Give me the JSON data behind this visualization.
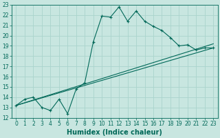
{
  "xlabel": "Humidex (Indice chaleur)",
  "bg_color": "#c8e6e0",
  "line_color": "#006858",
  "grid_color": "#aad4cc",
  "xlim": [
    -0.5,
    23.5
  ],
  "ylim": [
    12,
    23
  ],
  "xticks": [
    0,
    1,
    2,
    3,
    4,
    5,
    6,
    7,
    8,
    9,
    10,
    11,
    12,
    13,
    14,
    15,
    16,
    17,
    18,
    19,
    20,
    21,
    22,
    23
  ],
  "yticks": [
    12,
    13,
    14,
    15,
    16,
    17,
    18,
    19,
    20,
    21,
    22,
    23
  ],
  "line1_x": [
    0,
    1,
    2,
    3,
    4,
    5,
    6,
    7,
    8,
    9,
    10,
    11,
    12,
    13,
    14,
    15,
    16,
    17,
    18,
    19,
    20,
    21,
    22,
    23
  ],
  "line1_y": [
    13.2,
    13.8,
    14.0,
    13.0,
    12.7,
    13.8,
    12.4,
    14.8,
    15.4,
    19.4,
    21.9,
    21.8,
    22.8,
    21.4,
    22.4,
    21.4,
    20.9,
    20.5,
    19.8,
    19.0,
    19.1,
    18.6,
    18.8,
    18.8
  ],
  "line2_x": [
    0,
    23
  ],
  "line2_y": [
    13.2,
    19.2
  ],
  "line3_x": [
    0,
    23
  ],
  "line3_y": [
    13.2,
    18.8
  ],
  "tick_fontsize": 5.5,
  "xlabel_fontsize": 7
}
